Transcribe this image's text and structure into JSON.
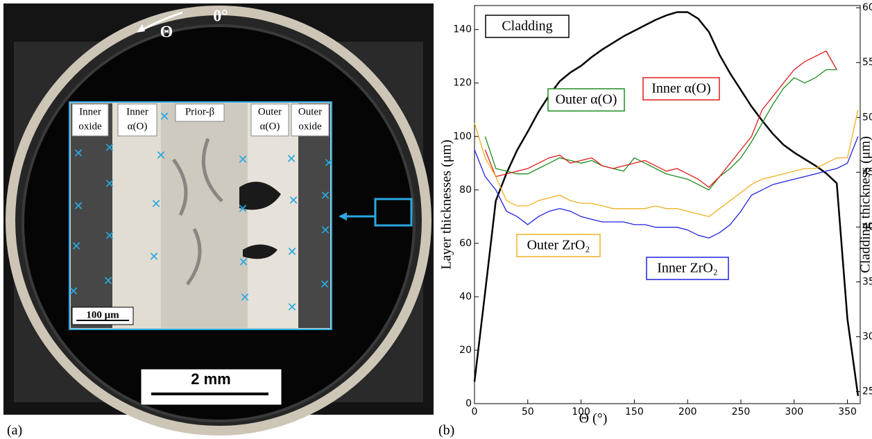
{
  "panel_a": {
    "zero_angle": "0°",
    "theta": "Θ",
    "layers": [
      [
        "Inner",
        "oxide"
      ],
      [
        "Inner",
        "α(O)"
      ],
      [
        "Prior-β"
      ],
      [
        "Outer",
        "α(O)"
      ],
      [
        "Outer",
        "oxide"
      ]
    ],
    "inset_scale": "100 μm",
    "scale": "2 mm"
  },
  "captions": [
    "(a)",
    "(b)"
  ],
  "chart_data": {
    "type": "line",
    "xlabel": "Θ (°)",
    "ylabel": "Layer thicknesses (μm)",
    "y2label": "Cladding thickness (μm)",
    "x": [
      0,
      10,
      20,
      30,
      40,
      50,
      60,
      70,
      80,
      90,
      100,
      110,
      120,
      130,
      140,
      150,
      160,
      170,
      180,
      190,
      200,
      210,
      220,
      230,
      240,
      250,
      260,
      270,
      280,
      290,
      300,
      310,
      320,
      330,
      340,
      350,
      360
    ],
    "xlim": [
      0,
      362
    ],
    "xticks": [
      0,
      50,
      100,
      150,
      200,
      250,
      300,
      350
    ],
    "ylim": [
      0,
      149
    ],
    "yticks": [
      0,
      20,
      40,
      60,
      80,
      100,
      120,
      140
    ],
    "y2lim": [
      239,
      602
    ],
    "y2ticks": [
      250,
      300,
      350,
      400,
      450,
      500,
      550,
      600
    ],
    "series": [
      {
        "name": "Cladding",
        "color": "#000000",
        "axis": "y2",
        "values": [
          259,
          341,
          424,
          449,
          470,
          487,
          505,
          520,
          533,
          541,
          547,
          555,
          562,
          568,
          574,
          579,
          584,
          589,
          593,
          596,
          596,
          590,
          578,
          557,
          540,
          525,
          510,
          497,
          485,
          475,
          468,
          462,
          456,
          449,
          440,
          316,
          246
        ]
      },
      {
        "name": "Outer α(O)",
        "color": "#1e8c1e",
        "values": [
          null,
          100,
          88,
          87,
          86,
          86,
          88,
          90,
          92,
          91,
          90,
          91,
          89,
          88,
          87,
          92,
          90,
          88,
          86,
          85,
          84,
          82,
          80,
          85,
          88,
          92,
          98,
          105,
          112,
          118,
          122,
          120,
          122,
          125,
          125,
          null,
          null
        ]
      },
      {
        "name": "Inner α(O)",
        "color": "#e01b1b",
        "values": [
          null,
          95,
          85,
          86,
          87,
          88,
          90,
          92,
          93,
          90,
          91,
          92,
          89,
          88,
          89,
          90,
          91,
          89,
          87,
          88,
          86,
          84,
          81,
          85,
          90,
          95,
          100,
          110,
          115,
          120,
          125,
          128,
          130,
          132,
          125,
          null,
          null
        ]
      },
      {
        "name": "Outer ZrO₂",
        "color": "#f0b020",
        "values": [
          105,
          92,
          85,
          76,
          74,
          74,
          76,
          77,
          78,
          76,
          75,
          75,
          74,
          73,
          73,
          73,
          73,
          74,
          73,
          73,
          72,
          71,
          70,
          73,
          76,
          79,
          82,
          84,
          85,
          86,
          87,
          88,
          88,
          90,
          92,
          92,
          110
        ]
      },
      {
        "name": "Inner ZrO₂",
        "color": "#2020e0",
        "values": [
          95,
          85,
          80,
          72,
          70,
          67,
          70,
          72,
          73,
          72,
          70,
          69,
          68,
          68,
          68,
          67,
          67,
          66,
          66,
          66,
          65,
          63,
          62,
          64,
          67,
          72,
          78,
          80,
          82,
          83,
          84,
          85,
          86,
          87,
          88,
          90,
          100
        ]
      }
    ]
  }
}
